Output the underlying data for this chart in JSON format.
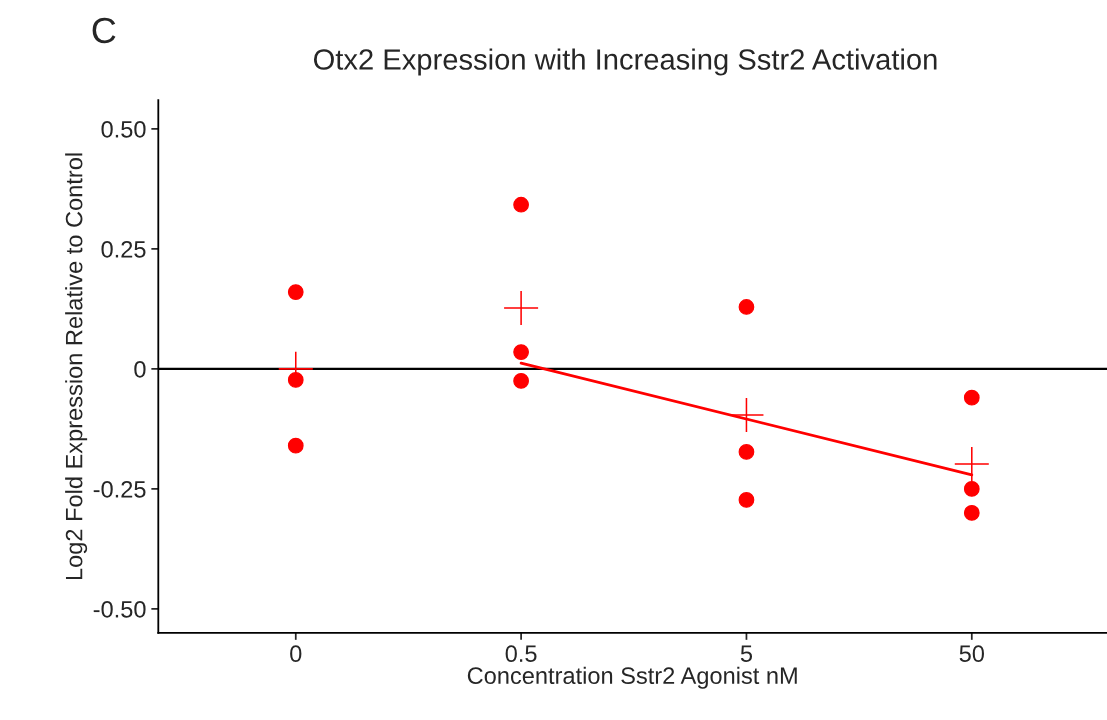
{
  "chart_data": {
    "type": "scatter",
    "title": "Otx2 Expression with Increasing Sstr2 Activation",
    "xlabel": "Concentration Sstr2 Agonist nM",
    "ylabel": "Log2 Fold Expression Relative to Control",
    "annotations": [
      "C"
    ],
    "categories": [
      "0",
      "0.5",
      "5",
      "50"
    ],
    "series": [
      {
        "marker": "circle",
        "color": "#ff0000",
        "x": [
          "0",
          "0",
          "0",
          "0.5",
          "0.5",
          "0.5",
          "5",
          "5",
          "5",
          "50",
          "50",
          "50"
        ],
        "values": [
          0.16,
          -0.023,
          -0.16,
          0.342,
          0.035,
          -0.025,
          0.129,
          -0.173,
          -0.273,
          -0.06,
          -0.25,
          -0.3
        ]
      },
      {
        "marker": "cross",
        "color": "#ff0000",
        "x": [
          "0",
          "0.5",
          "5",
          "50"
        ],
        "values": [
          0.0,
          0.127,
          -0.096,
          -0.198
        ]
      },
      {
        "type": "line",
        "marker": "none",
        "color": "#ff0000",
        "x": [
          "0.5",
          "50"
        ],
        "values": [
          0.012,
          -0.221
        ]
      }
    ],
    "ylim": [
      -0.55,
      0.56
    ],
    "yticks": [
      {
        "value": -0.5,
        "label": "-0.50"
      },
      -0.25,
      0,
      0.25,
      {
        "value": 0.5,
        "label": "0.50"
      }
    ],
    "ref_lines": [
      {
        "axis": "y",
        "value": 0,
        "color": "#000000"
      }
    ],
    "grid": false,
    "legend": false
  }
}
